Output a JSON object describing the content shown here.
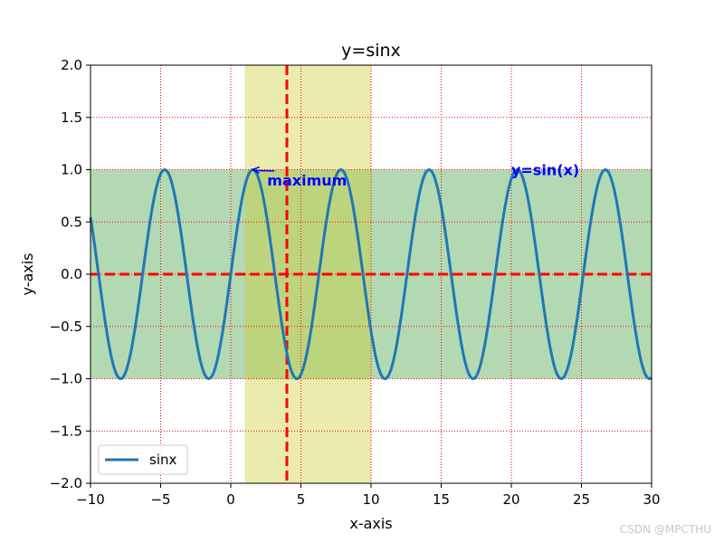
{
  "chart_data": {
    "type": "line",
    "title": "y=sinx",
    "xlabel": "x-axis",
    "ylabel": "y-axis",
    "xlim": [
      -10,
      30
    ],
    "ylim": [
      -2,
      2
    ],
    "xticks": [
      -10,
      -5,
      0,
      5,
      10,
      15,
      20,
      25,
      30
    ],
    "xtick_labels": [
      "−10",
      "−5",
      "0",
      "5",
      "10",
      "15",
      "20",
      "25",
      "30"
    ],
    "yticks": [
      2.0,
      1.5,
      1.0,
      0.5,
      0.0,
      -0.5,
      -1.0,
      -1.5,
      -2.0
    ],
    "ytick_labels": [
      "2.0",
      "1.5",
      "1.0",
      "0.5",
      "0.0",
      "−0.5",
      "−1.0",
      "−1.5",
      "−2.0"
    ],
    "grid": true,
    "grid_style": "dotted",
    "grid_color": "#ff0000",
    "legend_placement": "lower-left",
    "series": [
      {
        "name": "sinx",
        "function": "sin",
        "x_range": [
          -10,
          30
        ],
        "color": "#1f77b4"
      }
    ],
    "hlines": [
      {
        "y": 0,
        "color": "#ff0000",
        "style": "dashed"
      }
    ],
    "vlines": [
      {
        "x": 4,
        "color": "#ff0000",
        "style": "dashed"
      }
    ],
    "hspans": [
      {
        "y0": -1,
        "y1": 1,
        "color": "#008000",
        "alpha": 0.3
      }
    ],
    "vspans": [
      {
        "x0": 1,
        "x1": 10,
        "color": "#cccc33",
        "alpha": 0.4
      }
    ],
    "annotations": [
      {
        "text": "maximum",
        "point": [
          1.57,
          1.0
        ],
        "text_at": [
          2.6,
          0.85
        ],
        "arrow": true,
        "color": "#0000ff"
      },
      {
        "text": "y=sin(x)",
        "text_at": [
          20,
          0.95
        ],
        "arrow": false,
        "color": "#0000ff"
      }
    ]
  },
  "watermark": "CSDN @MPCTHU"
}
